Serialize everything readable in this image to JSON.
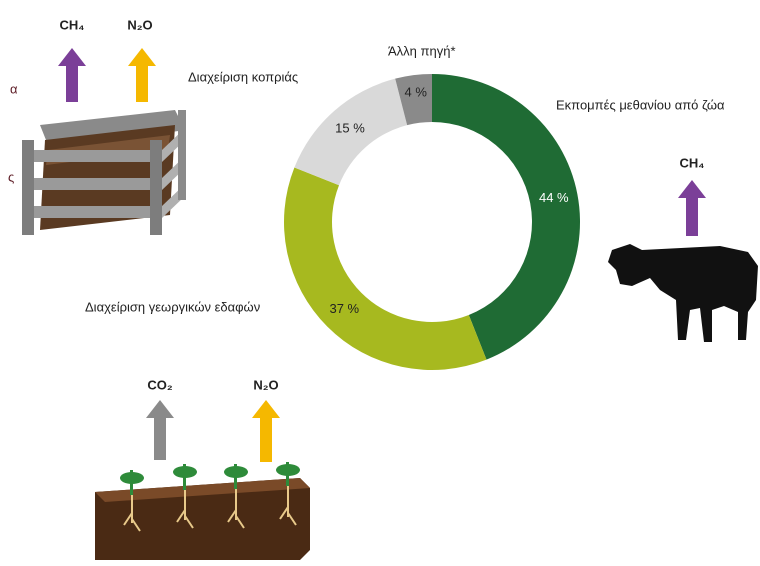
{
  "chart_data": {
    "type": "donut",
    "categories": [
      "Εκπομπές μεθανίου από ζώα",
      "Διαχείριση γεωργικών εδαφών",
      "Διαχείριση κοπριάς",
      "Άλλη πηγή*"
    ],
    "values": [
      44,
      37,
      15,
      4
    ],
    "value_labels": [
      "44 %",
      "37 %",
      "15 %",
      "4 %"
    ],
    "colors": [
      "#1f6b34",
      "#a7b91f",
      "#d9d9d9",
      "#8a8a8a"
    ],
    "annotations": [
      "CH₄",
      "N₂O",
      "CH₄",
      "CO₂",
      "N₂O",
      "α",
      "ς"
    ]
  }
}
